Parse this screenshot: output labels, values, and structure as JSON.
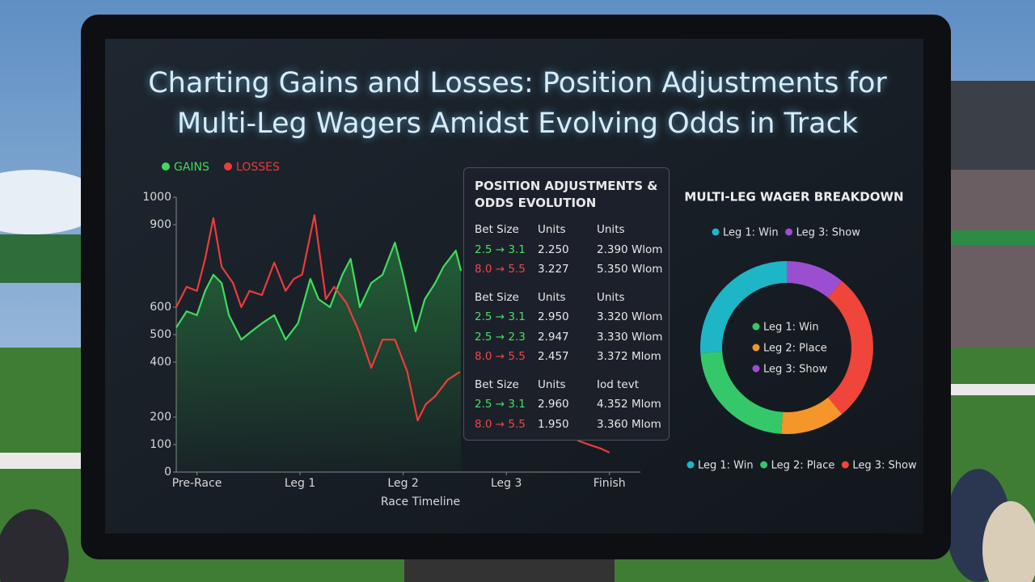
{
  "screen": {
    "title": "Charting Gains and Losses: Position Adjustments for Multi-Leg Wagers Amidst Evolving Odds in Track"
  },
  "chart_data": [
    {
      "type": "line",
      "xlabel": "Race Timeline",
      "xlim": [
        -0.2,
        4.3
      ],
      "xticks": [
        {
          "value": 0,
          "label": "Pre-Race"
        },
        {
          "value": 1,
          "label": "Leg 1"
        },
        {
          "value": 2,
          "label": "Leg 2"
        },
        {
          "value": 3,
          "label": "Leg 3"
        },
        {
          "value": 4,
          "label": "Finish"
        }
      ],
      "ylim": [
        0,
        1000
      ],
      "yticks": [
        1000,
        900,
        600,
        500,
        400,
        200,
        100,
        0
      ],
      "grid": false,
      "series": [
        {
          "name": "GAINS",
          "color": "#3fdc5c",
          "x": [
            -0.2,
            -0.1,
            0,
            0.08,
            0.16,
            0.24,
            0.31,
            0.43,
            0.53,
            0.63,
            0.75,
            0.86,
            0.98,
            1.1,
            1.18,
            1.29,
            1.41,
            1.49,
            1.58,
            1.69,
            1.8,
            1.92,
            2,
            2.12,
            2.21,
            2.31,
            2.39,
            2.51,
            2.56
          ],
          "values": [
            526,
            585,
            571,
            659,
            718,
            688,
            571,
            482,
            512,
            541,
            571,
            482,
            541,
            703,
            629,
            600,
            718,
            776,
            600,
            688,
            718,
            835,
            718,
            512,
            629,
            688,
            747,
            806,
            732
          ]
        },
        {
          "name": "LOSSES",
          "color": "#ee3b3b",
          "x": [
            -0.2,
            -0.1,
            0,
            0.08,
            0.16,
            0.24,
            0.35,
            0.43,
            0.51,
            0.63,
            0.75,
            0.86,
            0.94,
            1.02,
            1.14,
            1.25,
            1.33,
            1.45,
            1.57,
            1.69,
            1.8,
            1.92,
            2.04,
            2.14,
            2.22,
            2.31,
            2.43,
            2.55,
            3.1,
            3.69,
            3.8,
            3.92,
            4
          ],
          "values": [
            600,
            674,
            659,
            776,
            924,
            747,
            688,
            600,
            659,
            644,
            762,
            659,
            703,
            718,
            935,
            629,
            674,
            615,
            512,
            379,
            482,
            482,
            365,
            188,
            247,
            276,
            335,
            365,
            null,
            115,
            100,
            85,
            71
          ]
        }
      ]
    },
    {
      "type": "pie",
      "title": "MULTI-LEG WAGER BREAKDOWN",
      "values": [
        11,
        28,
        12,
        23,
        26
      ],
      "colors": [
        "#9b4fd0",
        "#f0453a",
        "#f5962a",
        "#34c86a",
        "#1eb5c6"
      ],
      "legends": [
        [
          {
            "label": "Leg 1: Win",
            "color": "#1eb5c6"
          },
          {
            "label": "Leg 3: Show",
            "color": "#9b4fd0"
          }
        ],
        [
          {
            "label": "Leg 1: Win",
            "color": "#34c86a"
          },
          {
            "label": "Leg 2: Place",
            "color": "#f5962a"
          },
          {
            "label": "Leg 3: Show",
            "color": "#9b4fd0"
          }
        ],
        [
          {
            "label": "Leg 1: Win",
            "color": "#1eb5c6"
          },
          {
            "label": "Leg 2: Place",
            "color": "#34c86a"
          },
          {
            "label": "Leg 3: Show",
            "color": "#f0453a"
          }
        ]
      ]
    }
  ],
  "panel": {
    "title": "POSITION ADJUSTMENTS & ODDS EVOLUTION",
    "groups": [
      {
        "header": [
          "Bet Size",
          "Units",
          "Units"
        ],
        "rows": [
          {
            "color": "#46e060",
            "cells": [
              "2.5 → 3.1",
              "2.250",
              "2.390 Wlom"
            ]
          },
          {
            "color": "#f04848",
            "cells": [
              "8.0 → 5.5",
              "3.227",
              "5.350 Wlom"
            ]
          }
        ]
      },
      {
        "header": [
          "Bet Size",
          "Units",
          "Units"
        ],
        "rows": [
          {
            "color": "#46e060",
            "cells": [
              "2.5 → 3.1",
              "2.950",
              "3.320 Wlom"
            ]
          },
          {
            "color": "#46e060",
            "cells": [
              "2.5 → 2.3",
              "2.947",
              "3.330 Wlom"
            ]
          },
          {
            "color": "#f04848",
            "cells": [
              "8.0 → 5.5",
              "2.457",
              "3.372 Mlom"
            ]
          }
        ]
      },
      {
        "header": [
          "Bet Size",
          "Units",
          "Iod tevt"
        ],
        "rows": [
          {
            "color": "#46e060",
            "cells": [
              "2.5 → 3.1",
              "2.960",
              "4.352 Mlom"
            ]
          },
          {
            "color": "#f04848",
            "cells": [
              "8.0 → 5.5",
              "1.950",
              "3.360 Mlom"
            ]
          }
        ]
      }
    ]
  }
}
